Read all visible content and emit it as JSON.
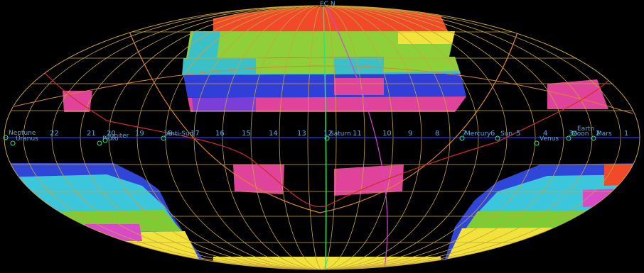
{
  "map": {
    "projection": "aitoff",
    "colors": {
      "background": "#000000",
      "grid": "#c8a43a",
      "equator": "#1f2fd0",
      "ecliptic": "#d9862a",
      "galactic": "#d22a2a",
      "meridian_green": "#38e06a",
      "meridian_magenta": "#d247d2",
      "label": "#5aa8d8"
    },
    "hour_labels": [
      "22",
      "21",
      "20",
      "19",
      "18",
      "17",
      "16",
      "15",
      "14",
      "13",
      "12",
      "11",
      "10",
      "9",
      "8",
      "7",
      "6",
      "5",
      "4",
      "3",
      "2",
      "1"
    ],
    "markers": [
      {
        "label": "Neptune"
      },
      {
        "label": "Uranus"
      },
      {
        "label": "Pluto"
      },
      {
        "label": "Anti-Sun"
      },
      {
        "label": "Jupiter"
      },
      {
        "label": "Saturn"
      },
      {
        "label": "Mercury"
      },
      {
        "label": "Sun"
      },
      {
        "label": "Venus"
      },
      {
        "label": "Earth"
      },
      {
        "label": "Moon"
      },
      {
        "label": "Mars"
      }
    ],
    "top_label": "EC N",
    "survey_bands": [
      {
        "name": "north-cap",
        "color": "#f04a2a"
      },
      {
        "name": "north-green",
        "color": "#8fcf3a"
      },
      {
        "name": "north-cyan",
        "color": "#3cc0c8"
      },
      {
        "name": "north-blue",
        "color": "#2f3fd8"
      },
      {
        "name": "north-magenta",
        "color": "#e0449a"
      },
      {
        "name": "south-blue",
        "color": "#3046d8"
      },
      {
        "name": "south-cyan",
        "color": "#3cc6dc"
      },
      {
        "name": "south-green",
        "color": "#7ccc34"
      },
      {
        "name": "south-yellow",
        "color": "#f2e33c"
      },
      {
        "name": "south-magenta",
        "color": "#d84ac8"
      }
    ]
  }
}
